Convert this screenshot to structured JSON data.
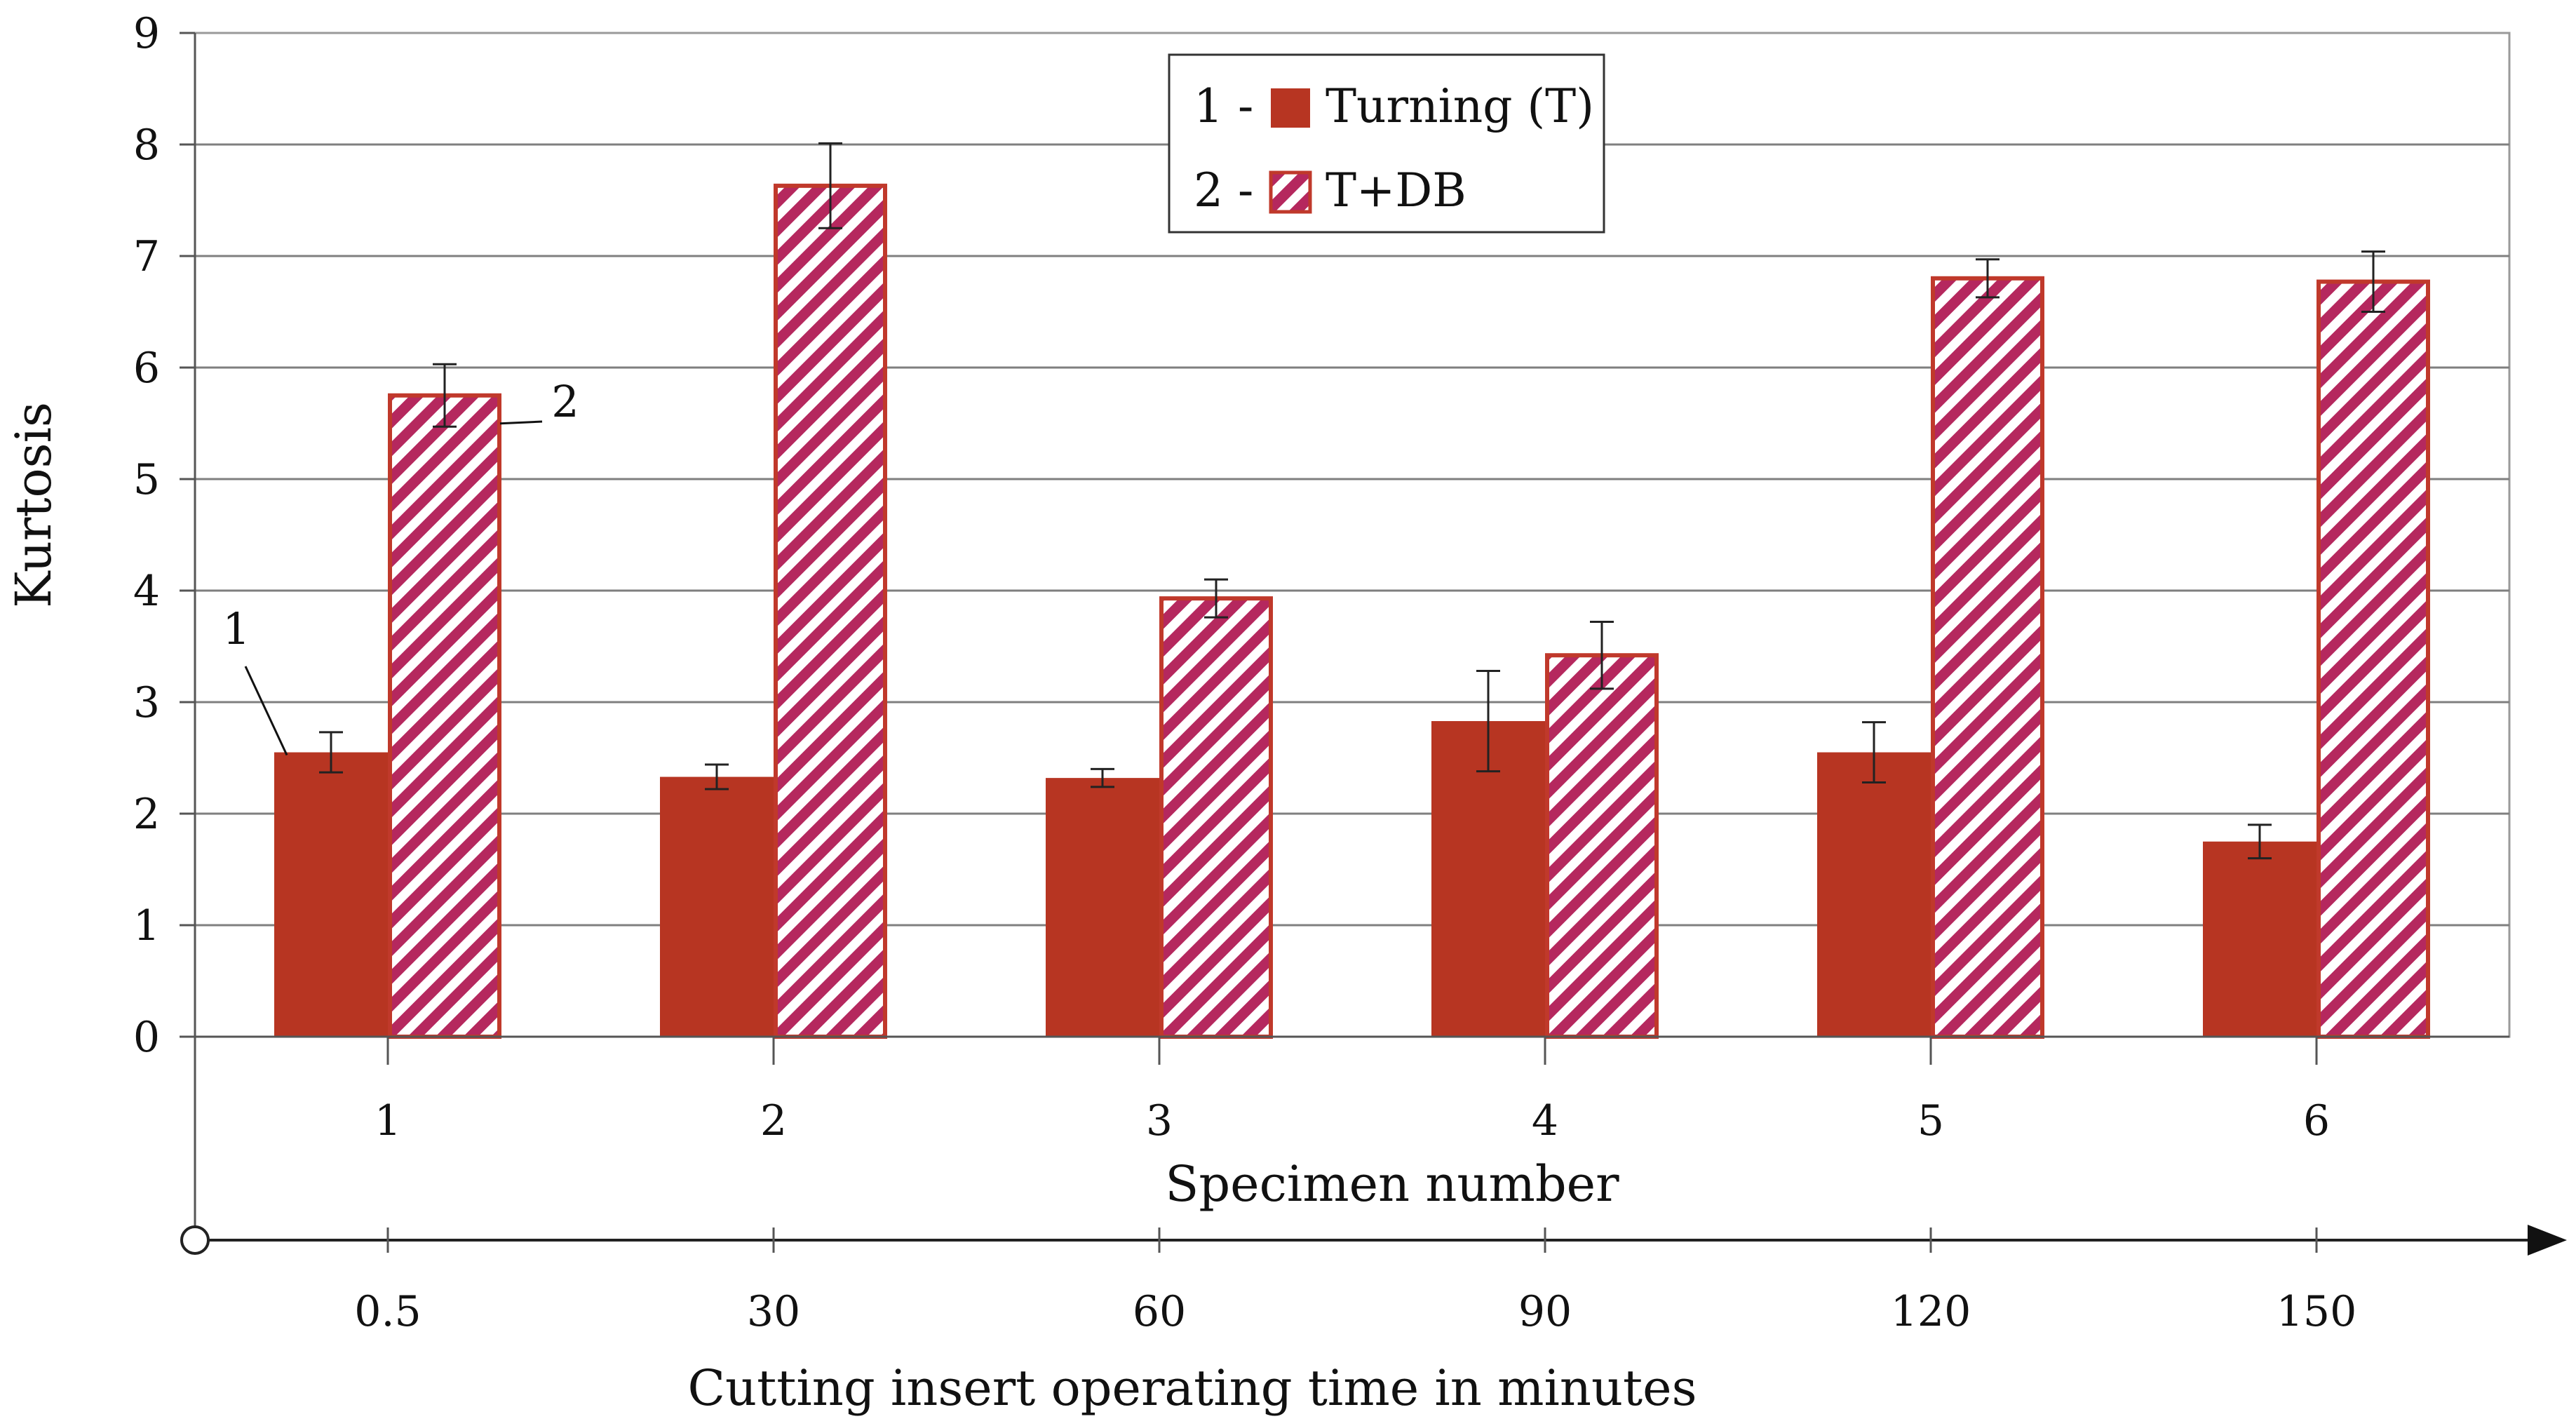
{
  "chart_data": {
    "type": "bar",
    "ylabel": "Kurtosis",
    "ylim": [
      0,
      9
    ],
    "yticks": [
      "0",
      "1",
      "2",
      "3",
      "4",
      "5",
      "6",
      "7",
      "8",
      "9"
    ],
    "grid": true,
    "categories": [
      "1",
      "2",
      "3",
      "4",
      "5",
      "6"
    ],
    "xlabel": "Specimen number",
    "secondary_x": {
      "labels": [
        "0.5",
        "30",
        "60",
        "90",
        "120",
        "150"
      ],
      "xlabel": "Cutting insert operating time in minutes"
    },
    "series": [
      {
        "name": "Turning (T)",
        "legend_prefix": "1 -",
        "color": "#b73522",
        "fill": "solid",
        "values": [
          2.55,
          2.33,
          2.32,
          2.83,
          2.55,
          1.75
        ],
        "error": [
          0.18,
          0.11,
          0.08,
          0.45,
          0.27,
          0.15
        ]
      },
      {
        "name": "T+DB",
        "legend_prefix": "2 -",
        "color": "#c0392b",
        "hatch_color": "#b5285e",
        "fill": "hatched",
        "values": [
          5.75,
          7.63,
          3.93,
          3.42,
          6.8,
          6.77
        ],
        "error": [
          0.28,
          0.38,
          0.17,
          0.3,
          0.17,
          0.27
        ]
      }
    ],
    "callouts": [
      "1",
      "2"
    ],
    "legend_position": "top-center"
  }
}
